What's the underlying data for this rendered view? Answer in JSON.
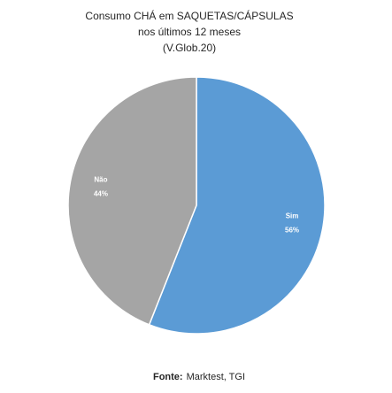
{
  "chart_data": {
    "type": "pie",
    "title": [
      "Consumo CHÁ em SAQUETAS/CÁPSULAS",
      "nos últimos 12 meses",
      "(V.Glob.20)"
    ],
    "categories": [
      "Sim",
      "Não"
    ],
    "values": [
      56,
      44
    ],
    "value_labels": [
      "56%",
      "44%"
    ],
    "colors": [
      "#5b9bd5",
      "#a5a5a5"
    ],
    "source_label": "Fonte:",
    "source": "Marktest, TGI"
  }
}
